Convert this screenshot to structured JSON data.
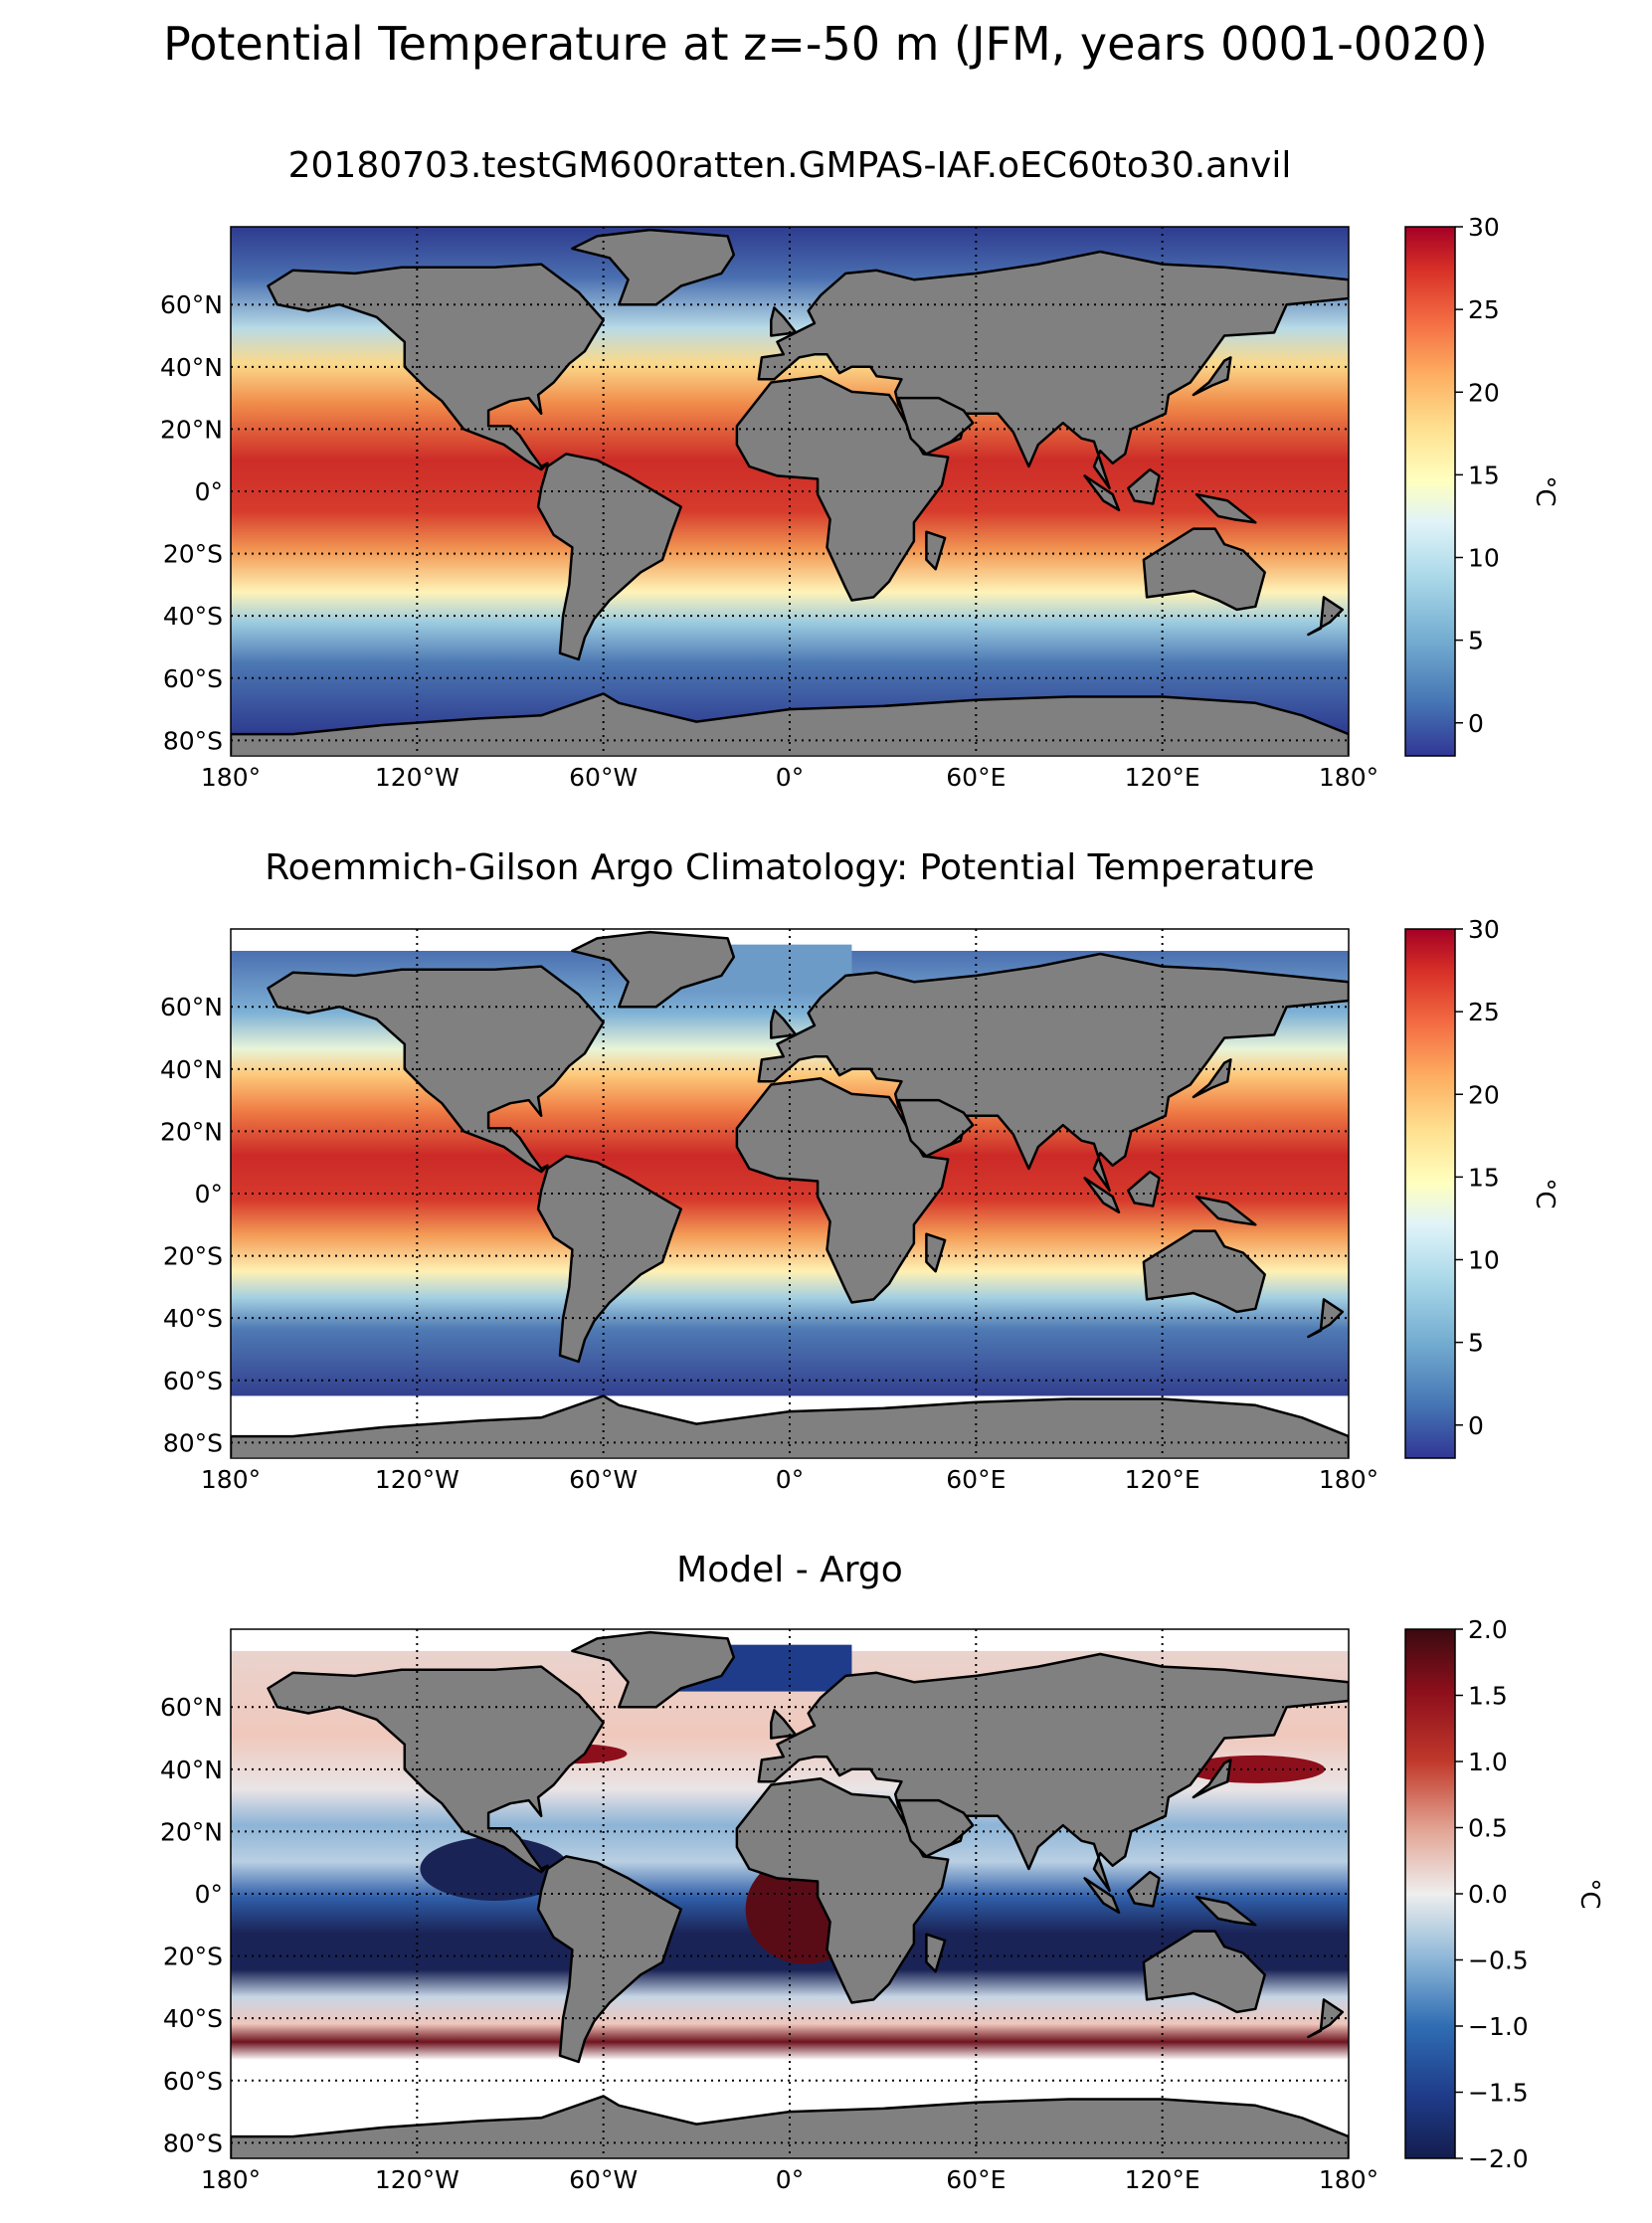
{
  "figure": {
    "title": "Potential Temperature at z=-50 m (JFM, years 0001-0020)"
  },
  "colors": {
    "land": "#808080",
    "no_data": "#ffffff",
    "grid_line": "#000000",
    "coast_line": "#000000"
  },
  "chart_data": [
    {
      "type": "heatmap",
      "title": "20180703.testGM600ratten.GMPAS-IAF.oEC60to30.anvil",
      "field": "model",
      "xlabel": "",
      "ylabel": "",
      "xlim": [
        -180,
        180
      ],
      "ylim": [
        -85,
        85
      ],
      "grid": true,
      "x_ticks": [
        -180,
        -120,
        -60,
        0,
        60,
        120,
        180
      ],
      "x_tick_labels": [
        "180°",
        "120°W",
        "60°W",
        "0°",
        "60°E",
        "120°E",
        "180°"
      ],
      "y_ticks": [
        -80,
        -60,
        -40,
        -20,
        0,
        20,
        40,
        60
      ],
      "y_tick_labels": [
        "80°S",
        "60°S",
        "40°S",
        "20°S",
        "0°",
        "20°N",
        "40°N",
        "60°N"
      ],
      "colorbar": {
        "label": "°C",
        "vmin": -2,
        "vmax": 30,
        "ticks": [
          0,
          5,
          10,
          15,
          20,
          25,
          30
        ],
        "tick_labels": [
          "0",
          "5",
          "10",
          "15",
          "20",
          "25",
          "30"
        ],
        "colormap": "RdYlBu_r"
      }
    },
    {
      "type": "heatmap",
      "title": "Roemmich-Gilson Argo Climatology: Potential Temperature",
      "field": "obs",
      "xlabel": "",
      "ylabel": "",
      "xlim": [
        -180,
        180
      ],
      "ylim": [
        -85,
        85
      ],
      "grid": true,
      "x_ticks": [
        -180,
        -120,
        -60,
        0,
        60,
        120,
        180
      ],
      "x_tick_labels": [
        "180°",
        "120°W",
        "60°W",
        "0°",
        "60°E",
        "120°E",
        "180°"
      ],
      "y_ticks": [
        -80,
        -60,
        -40,
        -20,
        0,
        20,
        40,
        60
      ],
      "y_tick_labels": [
        "80°S",
        "60°S",
        "40°S",
        "20°S",
        "0°",
        "20°N",
        "40°N",
        "60°N"
      ],
      "colorbar": {
        "label": "°C",
        "vmin": -2,
        "vmax": 30,
        "ticks": [
          0,
          5,
          10,
          15,
          20,
          25,
          30
        ],
        "tick_labels": [
          "0",
          "5",
          "10",
          "15",
          "20",
          "25",
          "30"
        ],
        "colormap": "RdYlBu_r"
      }
    },
    {
      "type": "heatmap",
      "title": "Model - Argo",
      "field": "bias",
      "xlabel": "",
      "ylabel": "",
      "xlim": [
        -180,
        180
      ],
      "ylim": [
        -85,
        85
      ],
      "grid": true,
      "x_ticks": [
        -180,
        -120,
        -60,
        0,
        60,
        120,
        180
      ],
      "x_tick_labels": [
        "180°",
        "120°W",
        "60°W",
        "0°",
        "60°E",
        "120°E",
        "180°"
      ],
      "y_ticks": [
        -80,
        -60,
        -40,
        -20,
        0,
        20,
        40,
        60
      ],
      "y_tick_labels": [
        "80°S",
        "60°S",
        "40°S",
        "20°S",
        "0°",
        "20°N",
        "40°N",
        "60°N"
      ],
      "colorbar": {
        "label": "°C",
        "vmin": -2,
        "vmax": 2,
        "ticks": [
          -2,
          -1.5,
          -1,
          -0.5,
          0,
          0.5,
          1,
          1.5,
          2
        ],
        "tick_labels": [
          "−2.0",
          "−1.5",
          "−1.0",
          "−0.5",
          "0.0",
          "0.5",
          "1.0",
          "1.5",
          "2.0"
        ],
        "colormap": "RdBu_r"
      }
    }
  ]
}
